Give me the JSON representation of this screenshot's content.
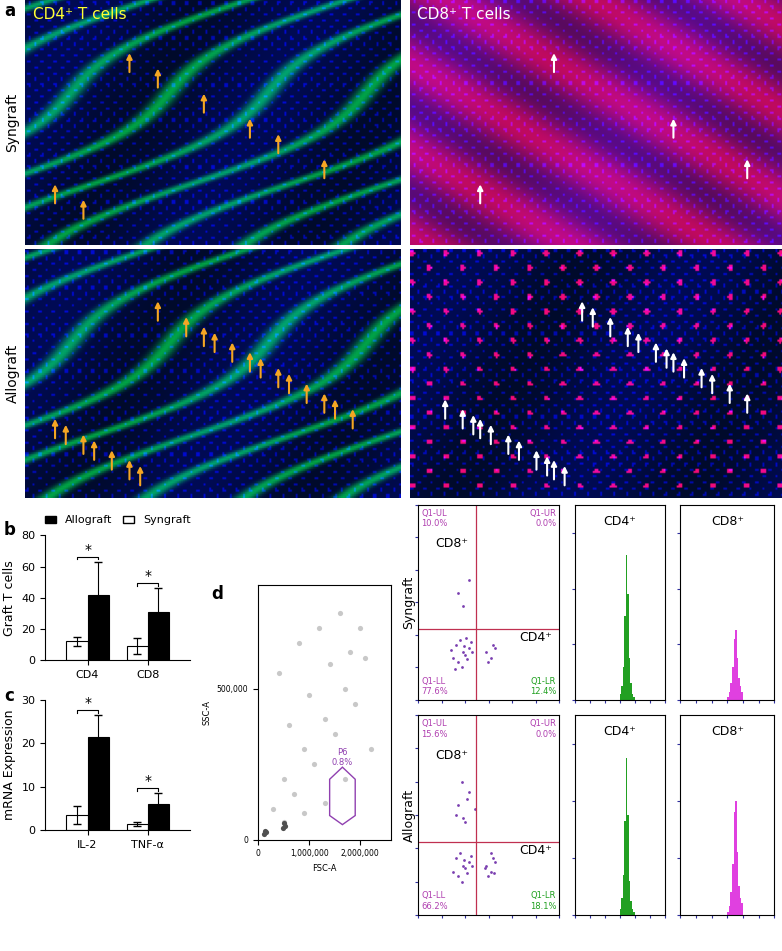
{
  "panel_labels": [
    "a",
    "b",
    "c",
    "d"
  ],
  "images": {
    "columns": [
      {
        "title": "CD4⁺ T cells",
        "color": "#ffff33"
      },
      {
        "title": "CD8⁺ T cells",
        "color": "#ffffff"
      }
    ],
    "rows": [
      "Syngraft",
      "Allograft"
    ]
  },
  "chart_data": [
    {
      "type": "bar",
      "ylabel": "Graft T cells",
      "categories": [
        "CD4",
        "CD8"
      ],
      "series": [
        {
          "name": "Syngraft",
          "color": "#ffffff",
          "values": [
            12,
            9
          ],
          "errors": [
            3,
            5
          ]
        },
        {
          "name": "Allograft",
          "color": "#000000",
          "values": [
            42,
            31
          ],
          "errors": [
            21,
            15
          ]
        }
      ],
      "ylim": [
        0,
        80
      ],
      "yticks": [
        0,
        20,
        40,
        60,
        80
      ],
      "significance": [
        "*",
        "*"
      ],
      "legend": "lower center"
    },
    {
      "type": "bar",
      "ylabel": "mRNA Expression",
      "categories": [
        "IL-2",
        "TNF-α"
      ],
      "series": [
        {
          "name": "Syngraft",
          "color": "#ffffff",
          "values": [
            3.5,
            1.5
          ],
          "errors": [
            2,
            0.5
          ]
        },
        {
          "name": "Allograft",
          "color": "#000000",
          "values": [
            21.5,
            6
          ],
          "errors": [
            5,
            2.5
          ]
        }
      ],
      "ylim": [
        0,
        30
      ],
      "yticks": [
        0,
        10,
        20,
        30
      ],
      "significance": [
        "*",
        "*"
      ]
    },
    {
      "type": "scatter",
      "xlabel": "FSC-A",
      "ylabel": "SSC-A",
      "series": [
        {
          "color": "#c8c8c8",
          "x": [
            300000,
            500000,
            700000,
            900000,
            1100000,
            1300000,
            1500000,
            1700000,
            1900000,
            2100000,
            400000,
            800000,
            1200000,
            1600000,
            2000000,
            600000,
            1000000,
            1400000,
            1800000,
            2200000,
            500000,
            900000,
            1300000,
            1700000
          ],
          "y": [
            100000,
            200000,
            150000,
            300000,
            250000,
            400000,
            350000,
            500000,
            450000,
            600000,
            550000,
            650000,
            700000,
            750000,
            700000,
            380000,
            480000,
            580000,
            620000,
            300000,
            60000,
            90000,
            120000,
            200000
          ]
        },
        {
          "color": "#505050",
          "x": [
            120000,
            140000,
            160000,
            480000,
            500000,
            520000
          ],
          "y": [
            20000,
            30000,
            25000,
            40000,
            55000,
            45000
          ]
        }
      ],
      "gate": {
        "x": [
          1400000,
          1650000,
          1900000,
          1900000,
          1650000,
          1400000
        ],
        "y": [
          80000,
          50000,
          80000,
          200000,
          240000,
          200000
        ],
        "name": "P6",
        "text": "0.8%",
        "color": "#9040b0"
      },
      "xlim": [
        0,
        2600000
      ],
      "xticks": [
        0,
        {
          "value": 1000000,
          "label": "1,000,000"
        },
        {
          "value": 2000000,
          "label": "2,000,000"
        }
      ],
      "ylim": [
        0,
        843000
      ],
      "yticks": [
        0,
        {
          "value": 500000,
          "label": "500,000"
        }
      ]
    },
    {
      "type": "scatter",
      "row_label": "Syngraft",
      "log": true,
      "tick_labels": false,
      "color": "#7a3fb0",
      "x": [
        300,
        500,
        800,
        1000,
        1500,
        400,
        700,
        1200,
        2000,
        600,
        900,
        350,
        1800,
        250,
        1100,
        8000,
        12000,
        15000,
        9000,
        18000,
        500,
        1500,
        800
      ],
      "y": [
        200,
        150,
        300,
        250,
        400,
        500,
        100,
        180,
        300,
        700,
        450,
        90,
        600,
        350,
        800,
        300,
        200,
        500,
        150,
        400,
        20000,
        50000,
        8000
      ],
      "quadrant_lines": {
        "x": 3000,
        "y": 1500
      },
      "quadrants": [
        {
          "name": "Q1-UL",
          "text": "10.0%",
          "color": "#b03fb0"
        },
        {
          "name": "Q1-UR",
          "text": "0.0%",
          "color": "#b03fb0"
        },
        {
          "name": "Q1-LL",
          "text": "77.6%",
          "color": "#b03fb0"
        },
        {
          "name": "Q1-LR",
          "text": "12.4%",
          "color": "#20a020"
        }
      ],
      "annotations": [
        "CD8⁺",
        "CD4⁺"
      ],
      "xlim": [
        10,
        10000000
      ],
      "xticks": [
        10,
        100,
        1000,
        10000,
        100000,
        1000000,
        10000000
      ],
      "ylim": [
        10,
        10000000
      ],
      "yticks": [
        10,
        100,
        1000,
        10000,
        100000,
        1000000,
        10000000
      ]
    },
    {
      "type": "scatter",
      "row_label": "Allograft",
      "log": true,
      "tick_labels": false,
      "color": "#7a3fb0",
      "x": [
        300,
        500,
        800,
        1000,
        1500,
        400,
        700,
        1200,
        2000,
        600,
        900,
        1800,
        8000,
        12000,
        15000,
        9000,
        18000,
        13000,
        7000,
        16000,
        500,
        1500,
        800,
        400,
        1200,
        2500,
        700,
        1000
      ],
      "y": [
        200,
        150,
        300,
        250,
        400,
        500,
        100,
        180,
        300,
        700,
        450,
        600,
        300,
        200,
        500,
        150,
        400,
        700,
        250,
        180,
        20000,
        50000,
        8000,
        10000,
        30000,
        15000,
        100000,
        6000
      ],
      "quadrant_lines": {
        "x": 3000,
        "y": 1500
      },
      "quadrants": [
        {
          "name": "Q1-UL",
          "text": "15.6%",
          "color": "#b03fb0"
        },
        {
          "name": "Q1-UR",
          "text": "0.0%",
          "color": "#b03fb0"
        },
        {
          "name": "Q1-LL",
          "text": "66.2%",
          "color": "#b03fb0"
        },
        {
          "name": "Q1-LR",
          "text": "18.1%",
          "color": "#20a020"
        }
      ],
      "annotations": [
        "CD8⁺",
        "CD4⁺"
      ],
      "xlim": [
        10,
        10000000
      ],
      "xticks": [
        10,
        100,
        1000,
        10000,
        100000,
        1000000,
        10000000
      ],
      "ylim": [
        10,
        10000000
      ],
      "yticks": [
        10,
        100,
        1000,
        10000,
        100000,
        1000000,
        10000000
      ]
    },
    {
      "type": "histogram",
      "title": "CD4⁺",
      "color": "#22a022",
      "log": "x",
      "tick_labels": false,
      "bins": [
        10000,
        12600,
        15800,
        20000,
        25100,
        31600,
        39800,
        50100,
        63100,
        79400,
        100000
      ],
      "counts": [
        2,
        5,
        12,
        30,
        52,
        38,
        15,
        6,
        2,
        1
      ],
      "xlim": [
        10,
        10000000
      ],
      "xticks": [
        10,
        100,
        1000,
        10000,
        100000,
        1000000,
        10000000
      ],
      "ylim": [
        0,
        70
      ],
      "yticks": [
        0,
        20,
        40,
        60
      ]
    },
    {
      "type": "histogram",
      "title": "CD8⁺",
      "color": "#e040e0",
      "log": "x",
      "tick_labels": false,
      "bins": [
        10000,
        12600,
        15800,
        20000,
        25100,
        31600,
        39800,
        50100,
        63100,
        79400,
        100000
      ],
      "counts": [
        1,
        3,
        6,
        12,
        22,
        25,
        15,
        8,
        5,
        3
      ],
      "xlim": [
        10,
        10000000
      ],
      "xticks": [
        10,
        100,
        1000,
        10000,
        100000,
        1000000,
        10000000
      ],
      "ylim": [
        0,
        70
      ],
      "yticks": [
        0,
        20,
        40,
        60
      ]
    },
    {
      "type": "histogram",
      "title": "CD4⁺",
      "color": "#22a022",
      "log": "x",
      "tick_labels": false,
      "bins": [
        10000,
        12600,
        15800,
        20000,
        25100,
        31600,
        39800,
        50100,
        63100,
        79400,
        100000
      ],
      "counts": [
        2,
        6,
        14,
        33,
        55,
        35,
        12,
        5,
        2,
        1
      ],
      "xlim": [
        10,
        10000000
      ],
      "xticks": [
        10,
        100,
        1000,
        10000,
        100000,
        1000000,
        10000000
      ],
      "ylim": [
        0,
        70
      ],
      "yticks": [
        0,
        20,
        40,
        60
      ]
    },
    {
      "type": "histogram",
      "title": "CD8⁺",
      "color": "#e040e0",
      "log": "x",
      "tick_labels": false,
      "bins": [
        10000,
        12600,
        15800,
        20000,
        25100,
        31600,
        39800,
        50100,
        63100,
        79400,
        100000
      ],
      "counts": [
        1,
        3,
        8,
        18,
        36,
        40,
        22,
        10,
        6,
        4
      ],
      "xlim": [
        10,
        10000000
      ],
      "xticks": [
        10,
        100,
        1000,
        10000,
        100000,
        1000000,
        10000000
      ],
      "ylim": [
        0,
        70
      ],
      "yticks": [
        0,
        20,
        40,
        60
      ]
    }
  ]
}
